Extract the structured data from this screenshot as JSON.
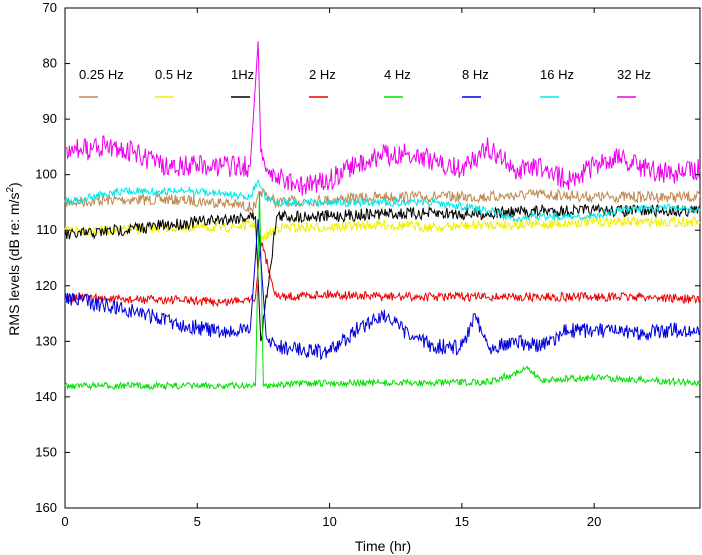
{
  "chart_data": {
    "type": "line",
    "title": "",
    "xlabel": "Time (hr)",
    "ylabel_main": "RMS levels (dB re: m/s",
    "ylabel_sup": "2",
    "ylabel_tail": ")",
    "xlim": [
      0,
      24
    ],
    "ylim": [
      70,
      160
    ],
    "y_inverted": true,
    "grid": false,
    "legend_placement": "top, horizontal inside plot",
    "xticks": [
      0,
      5,
      10,
      15,
      20
    ],
    "xtick_labels": [
      "0",
      "5",
      "10",
      "15",
      "20"
    ],
    "yticks": [
      70,
      80,
      90,
      100,
      110,
      120,
      130,
      140,
      150,
      160
    ],
    "ytick_labels": [
      "70",
      "80",
      "90",
      "100",
      "110",
      "120",
      "130",
      "140",
      "150",
      "160"
    ],
    "series": [
      {
        "name": "0.25 Hz",
        "color": "#c08850",
        "x": [
          0,
          2,
          4,
          6,
          7.2,
          7.4,
          8,
          10,
          12,
          14,
          16,
          18,
          20,
          22,
          24
        ],
        "values": [
          105,
          104.5,
          104.5,
          105,
          106,
          103,
          105,
          104.5,
          104,
          104,
          104,
          103.5,
          104,
          104,
          104
        ]
      },
      {
        "name": "0.5 Hz",
        "color": "#f0f000",
        "x": [
          0,
          2,
          4,
          6,
          7.2,
          7.4,
          8,
          10,
          12,
          14,
          16,
          18,
          20,
          22,
          24
        ],
        "values": [
          110,
          110,
          109.5,
          109.5,
          109,
          112,
          109.5,
          109.5,
          109,
          109.5,
          109,
          109,
          108.5,
          108.5,
          108.5
        ]
      },
      {
        "name": "1Hz",
        "color": "#000000",
        "x": [
          0,
          1,
          2,
          3,
          4,
          5,
          6,
          7.2,
          7.4,
          8,
          10,
          12,
          14,
          16,
          18,
          20,
          22,
          24
        ],
        "values": [
          111,
          110.5,
          110,
          109.5,
          109,
          108.5,
          108,
          107.5,
          130,
          107.5,
          107.5,
          107,
          107,
          107,
          106.5,
          106.5,
          106.5,
          106.5
        ]
      },
      {
        "name": "2 Hz",
        "color": "#ee0000",
        "x": [
          0,
          2,
          4,
          6,
          7.2,
          7.4,
          8,
          10,
          12,
          14,
          16,
          18,
          20,
          22,
          24
        ],
        "values": [
          122,
          122.5,
          122.5,
          123,
          122,
          112,
          122,
          121.5,
          122,
          122,
          122,
          122,
          122,
          122,
          122.5
        ]
      },
      {
        "name": "4 Hz",
        "color": "#00e000",
        "x": [
          0,
          2,
          4,
          6,
          7.2,
          7.35,
          7.5,
          8,
          10,
          12,
          14,
          16,
          17.5,
          18,
          20,
          22,
          24
        ],
        "values": [
          138,
          138,
          138,
          138,
          138,
          103,
          138,
          137.8,
          137.5,
          137.5,
          137.5,
          137.3,
          135,
          137,
          136.5,
          137,
          137.5
        ]
      },
      {
        "name": "8 Hz",
        "color": "#0000dd",
        "x": [
          0,
          1,
          2,
          3,
          4,
          5,
          6,
          7,
          7.3,
          7.6,
          8,
          9,
          10,
          11,
          12,
          13,
          14,
          15,
          15.5,
          16,
          17,
          18,
          19,
          20,
          21,
          22,
          23,
          24
        ],
        "values": [
          122,
          123,
          124,
          125,
          126.5,
          127.5,
          128.5,
          128,
          108,
          129,
          131,
          131.5,
          132,
          128,
          125,
          129,
          131,
          131,
          125,
          131,
          130,
          131,
          128,
          128,
          128.5,
          128.5,
          128,
          128
        ]
      },
      {
        "name": "16 Hz",
        "color": "#00e8e8",
        "x": [
          0,
          1,
          2,
          3,
          4,
          5,
          6,
          7,
          7.3,
          7.6,
          8,
          10,
          12,
          14,
          16,
          17,
          18,
          19,
          20,
          21,
          22,
          23,
          24
        ],
        "values": [
          105,
          104,
          103,
          103,
          103,
          103,
          103.5,
          104,
          101,
          104.5,
          105,
          105,
          105,
          105,
          106.5,
          108,
          107.5,
          107.5,
          107.5,
          106.5,
          106,
          106,
          106.5
        ]
      },
      {
        "name": "32 Hz",
        "color": "#ee00ee",
        "x": [
          0,
          1,
          1.5,
          2,
          3,
          4,
          5,
          6,
          7,
          7.3,
          7.4,
          7.6,
          8,
          9,
          10,
          11,
          12,
          13,
          14,
          15,
          16,
          17,
          18,
          19,
          20,
          21,
          22,
          23,
          24
        ],
        "values": [
          95,
          95.5,
          94.5,
          95,
          97,
          99,
          98,
          98.5,
          98.5,
          76,
          96,
          99.5,
          100.5,
          102,
          101,
          98,
          96.5,
          96,
          97.5,
          99,
          95,
          99,
          98.5,
          101,
          98.5,
          97,
          99,
          100,
          99
        ]
      }
    ]
  }
}
